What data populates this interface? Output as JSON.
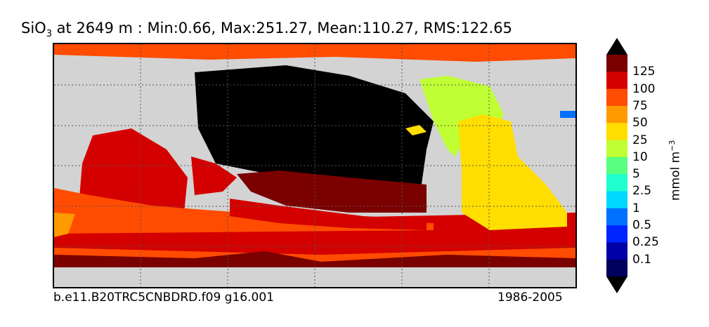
{
  "title": {
    "field": "SiO",
    "field_sub": "3",
    "rest": " at 2649 m : Min:0.66, Max:251.27, Mean:110.27, RMS:122.65"
  },
  "footer": {
    "case": "b.e11.B20TRC5CNBDRD.f09 g16.001",
    "years": "1986-2005"
  },
  "colorbar": {
    "units_main": "mmol m",
    "units_exp": "−3",
    "levels": [
      "125",
      "100",
      "75",
      "50",
      "25",
      "10",
      "5",
      "2.5",
      "1",
      "0.5",
      "0.25",
      "0.1"
    ],
    "colors": [
      "#7b0000",
      "#d40000",
      "#ff4c00",
      "#ff9a00",
      "#ffde00",
      "#bfff34",
      "#58ff80",
      "#1fffcf",
      "#00d8ff",
      "#0070ff",
      "#0024ff",
      "#0000a8",
      "#00005f"
    ]
  },
  "colors": {
    "land": "#d3d3d3",
    "no_data": "#000000",
    "missing": "#ffffff"
  }
}
